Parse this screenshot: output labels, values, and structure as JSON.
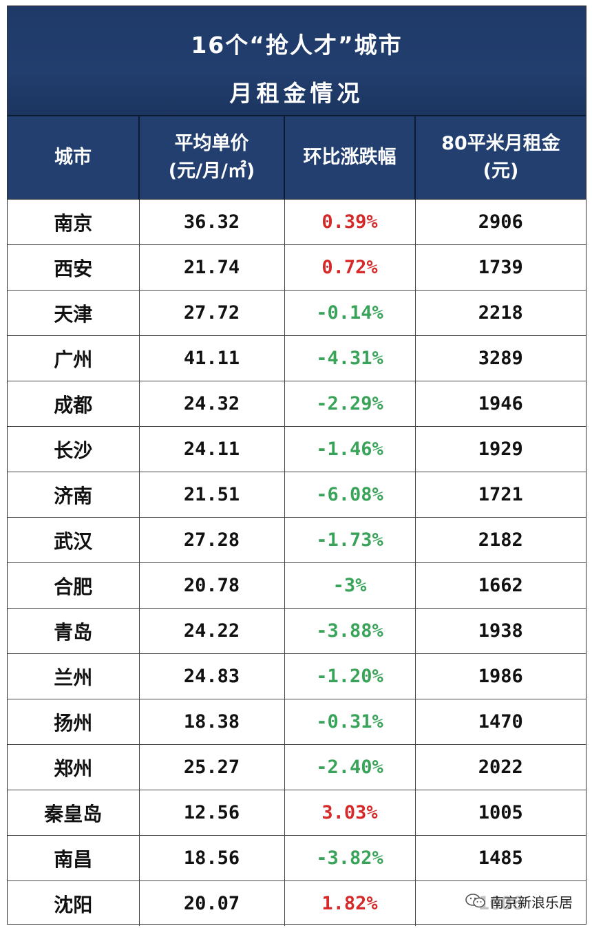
{
  "title": {
    "line1": "16个“抢人才”城市",
    "line2": "月租金情况"
  },
  "table": {
    "headers": [
      [
        "城市"
      ],
      [
        "平均单价",
        "(元/月/㎡)"
      ],
      [
        "环比涨跌幅"
      ],
      [
        "80平米月租金",
        "(元)"
      ]
    ],
    "rows": [
      {
        "city": "南京",
        "price": "36.32",
        "change": "0.39%",
        "trend": "up",
        "rent": "2906"
      },
      {
        "city": "西安",
        "price": "21.74",
        "change": "0.72%",
        "trend": "up",
        "rent": "1739"
      },
      {
        "city": "天津",
        "price": "27.72",
        "change": "-0.14%",
        "trend": "down",
        "rent": "2218"
      },
      {
        "city": "广州",
        "price": "41.11",
        "change": "-4.31%",
        "trend": "down",
        "rent": "3289"
      },
      {
        "city": "成都",
        "price": "24.32",
        "change": "-2.29%",
        "trend": "down",
        "rent": "1946"
      },
      {
        "city": "长沙",
        "price": "24.11",
        "change": "-1.46%",
        "trend": "down",
        "rent": "1929"
      },
      {
        "city": "济南",
        "price": "21.51",
        "change": "-6.08%",
        "trend": "down",
        "rent": "1721"
      },
      {
        "city": "武汉",
        "price": "27.28",
        "change": "-1.73%",
        "trend": "down",
        "rent": "2182"
      },
      {
        "city": "合肥",
        "price": "20.78",
        "change": "-3%",
        "trend": "down",
        "rent": "1662"
      },
      {
        "city": "青岛",
        "price": "24.22",
        "change": "-3.88%",
        "trend": "down",
        "rent": "1938"
      },
      {
        "city": "兰州",
        "price": "24.83",
        "change": "-1.20%",
        "trend": "down",
        "rent": "1986"
      },
      {
        "city": "扬州",
        "price": "18.38",
        "change": "-0.31%",
        "trend": "down",
        "rent": "1470"
      },
      {
        "city": "郑州",
        "price": "25.27",
        "change": "-2.40%",
        "trend": "down",
        "rent": "2022"
      },
      {
        "city": "秦皇岛",
        "price": "12.56",
        "change": "3.03%",
        "trend": "up",
        "rent": "1005"
      },
      {
        "city": "南昌",
        "price": "18.56",
        "change": "-3.82%",
        "trend": "down",
        "rent": "1485"
      },
      {
        "city": "沈阳",
        "price": "20.07",
        "change": "1.82%",
        "trend": "up",
        "rent": "1606"
      }
    ]
  },
  "watermark": {
    "text": "南京新浪乐居",
    "icon": "wechat-icon"
  },
  "colors": {
    "header_bg": "#233f70",
    "up": "#d42a2a",
    "down": "#3aa35a"
  }
}
